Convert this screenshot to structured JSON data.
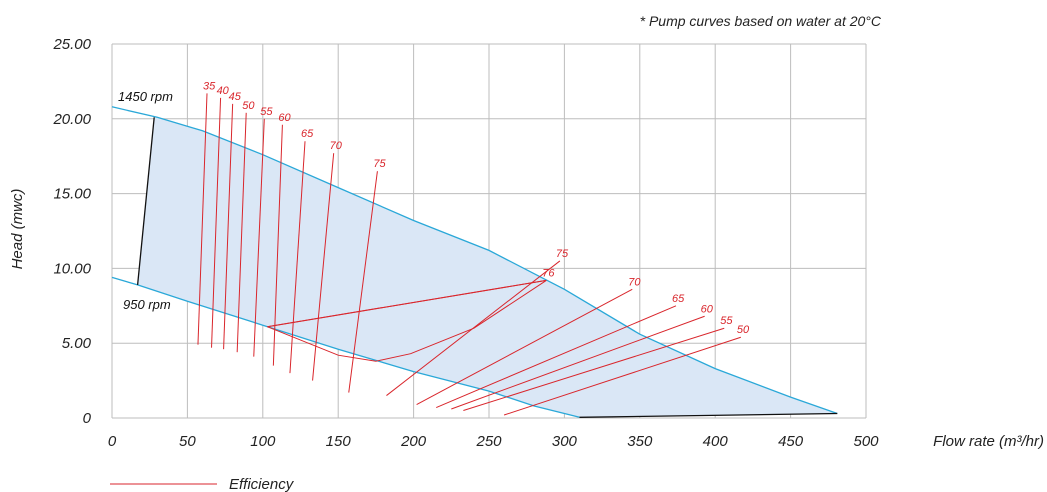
{
  "note": "* Pump curves based on water at 20°C",
  "chart_data": {
    "type": "line",
    "xlabel": "Flow rate (m³/hr)",
    "ylabel": "Head (mwc)",
    "xlim": [
      0,
      500
    ],
    "ylim": [
      0,
      25
    ],
    "x_ticks": [
      "0",
      "50",
      "100",
      "150",
      "200",
      "250",
      "300",
      "350",
      "400",
      "450",
      "500"
    ],
    "y_ticks": [
      "0",
      "5.00",
      "10.00",
      "15.00",
      "20.00",
      "25.00"
    ],
    "grid": true,
    "colors": {
      "pump": "#2aa8d8",
      "efficiency": "#d9262c",
      "fill": "#dae7f6",
      "grid": "#bdbdbd"
    },
    "series": [
      {
        "name": "1450 rpm",
        "points": [
          [
            0,
            20.8
          ],
          [
            30,
            20.1
          ],
          [
            60,
            19.2
          ],
          [
            100,
            17.6
          ],
          [
            150,
            15.4
          ],
          [
            200,
            13.2
          ],
          [
            250,
            11.2
          ],
          [
            300,
            8.6
          ],
          [
            350,
            5.6
          ],
          [
            400,
            3.3
          ],
          [
            450,
            1.4
          ],
          [
            481,
            0.3
          ]
        ]
      },
      {
        "name": "950 rpm",
        "points": [
          [
            0,
            9.4
          ],
          [
            17,
            8.9
          ],
          [
            50,
            7.8
          ],
          [
            100,
            6.2
          ],
          [
            150,
            4.6
          ],
          [
            200,
            3.1
          ],
          [
            250,
            1.8
          ],
          [
            280,
            0.8
          ],
          [
            310,
            0.05
          ]
        ]
      },
      {
        "name": "",
        "points": [
          [
            310,
            0.05
          ],
          [
            481,
            0.3
          ]
        ]
      },
      {
        "name": "",
        "points": [
          [
            17,
            8.9
          ],
          [
            28,
            20.1
          ]
        ]
      }
    ],
    "boundary_76": [
      [
        103,
        6.1
      ],
      [
        150,
        4.2
      ],
      [
        175,
        3.8
      ],
      [
        198,
        4.3
      ],
      [
        240,
        6.0
      ],
      [
        288,
        9.2
      ],
      [
        103,
        6.1
      ]
    ],
    "efficiency_lines": [
      {
        "label": "35",
        "from": [
          57,
          4.9
        ],
        "to": [
          63,
          21.7
        ]
      },
      {
        "label": "40",
        "from": [
          66,
          4.7
        ],
        "to": [
          72,
          21.4
        ]
      },
      {
        "label": "45",
        "from": [
          74,
          4.6
        ],
        "to": [
          80,
          21.0
        ]
      },
      {
        "label": "50",
        "from": [
          83,
          4.4
        ],
        "to": [
          89,
          20.4
        ]
      },
      {
        "label": "55",
        "from": [
          94,
          4.1
        ],
        "to": [
          101,
          20.0
        ]
      },
      {
        "label": "60",
        "from": [
          107,
          3.5
        ],
        "to": [
          113,
          19.6
        ]
      },
      {
        "label": "65",
        "from": [
          118,
          3.0
        ],
        "to": [
          128,
          18.5
        ]
      },
      {
        "label": "70",
        "from": [
          133,
          2.5
        ],
        "to": [
          147,
          17.7
        ]
      },
      {
        "label": "75",
        "from": [
          157,
          1.7
        ],
        "to": [
          176,
          16.5
        ]
      },
      {
        "label": "76",
        "from": [
          103,
          6.1
        ],
        "to": [
          288,
          9.2
        ]
      },
      {
        "label": "75",
        "from": [
          182,
          1.5
        ],
        "to": [
          297,
          10.5
        ]
      },
      {
        "label": "70",
        "from": [
          202,
          0.9
        ],
        "to": [
          345,
          8.6
        ]
      },
      {
        "label": "65",
        "from": [
          215,
          0.7
        ],
        "to": [
          374,
          7.5
        ]
      },
      {
        "label": "60",
        "from": [
          225,
          0.6
        ],
        "to": [
          393,
          6.8
        ]
      },
      {
        "label": "55",
        "from": [
          233,
          0.5
        ],
        "to": [
          406,
          6.0
        ]
      },
      {
        "label": "50",
        "from": [
          260,
          0.2
        ],
        "to": [
          417,
          5.4
        ]
      }
    ],
    "legend": {
      "entries": [
        "Efficiency"
      ],
      "position": "bottom-left"
    }
  }
}
